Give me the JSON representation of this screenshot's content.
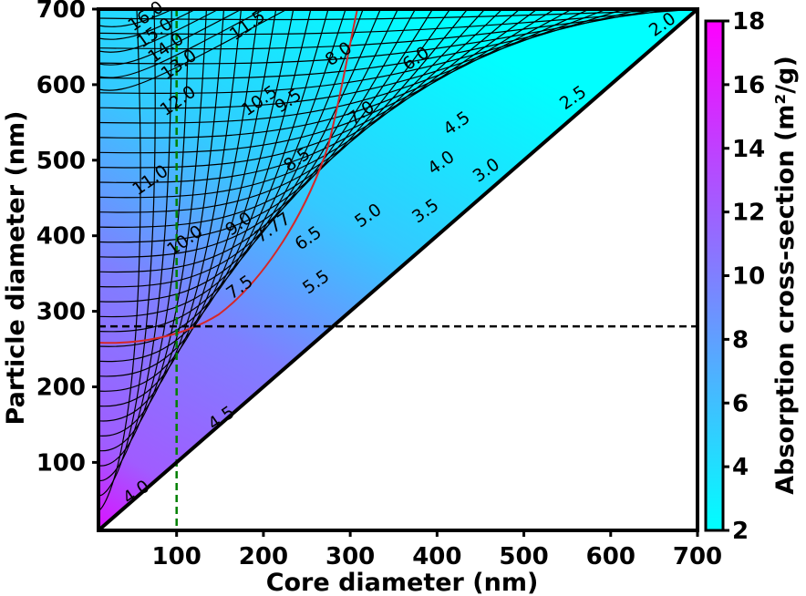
{
  "chart_data": {
    "type": "contour",
    "xlabel": "Core diameter (nm)",
    "ylabel": "Particle diameter (nm)",
    "colorbar_label": "Absorption cross-section (m²/g)",
    "xlim": [
      10,
      700
    ],
    "ylim": [
      10,
      700
    ],
    "x_ticks": [
      "100",
      "200",
      "300",
      "400",
      "500",
      "600",
      "700"
    ],
    "y_ticks": [
      "100",
      "200",
      "300",
      "400",
      "500",
      "600",
      "700"
    ],
    "colorbar_range": [
      2,
      18
    ],
    "colorbar_ticks": [
      "2",
      "4",
      "6",
      "8",
      "10",
      "12",
      "14",
      "16",
      "18"
    ],
    "colormap": [
      "#00ffff",
      "#ff00ff"
    ],
    "reference_lines": [
      {
        "orientation": "vertical",
        "x": 100,
        "color": "#008000",
        "style": "dashed"
      },
      {
        "orientation": "horizontal",
        "y": 280,
        "color": "#000000",
        "style": "dashed"
      }
    ],
    "highlight_contour": {
      "level": 7.77,
      "label": "7.77",
      "color": "#d62728"
    },
    "contour_labels": [
      {
        "text": "16.0",
        "x": 65,
        "y": 690
      },
      {
        "text": "15.0",
        "x": 75,
        "y": 668
      },
      {
        "text": "14.0",
        "x": 88,
        "y": 648
      },
      {
        "text": "13.0",
        "x": 103,
        "y": 626
      },
      {
        "text": "12.0",
        "x": 102,
        "y": 578
      },
      {
        "text": "11.5",
        "x": 182,
        "y": 678
      },
      {
        "text": "11.0",
        "x": 70,
        "y": 473
      },
      {
        "text": "10.5",
        "x": 196,
        "y": 578
      },
      {
        "text": "10.0",
        "x": 110,
        "y": 393
      },
      {
        "text": "9.5",
        "x": 229,
        "y": 578
      },
      {
        "text": "9.0",
        "x": 172,
        "y": 415
      },
      {
        "text": "8.5",
        "x": 239,
        "y": 500
      },
      {
        "text": "8.0",
        "x": 287,
        "y": 640
      },
      {
        "text": "7.77",
        "x": 211,
        "y": 410
      },
      {
        "text": "7.5",
        "x": 173,
        "y": 331
      },
      {
        "text": "7.0",
        "x": 313,
        "y": 562
      },
      {
        "text": "6.5",
        "x": 252,
        "y": 396
      },
      {
        "text": "6.0",
        "x": 376,
        "y": 634
      },
      {
        "text": "5.5",
        "x": 261,
        "y": 338
      },
      {
        "text": "5.0",
        "x": 321,
        "y": 426
      },
      {
        "text": "4.5",
        "x": 423,
        "y": 548
      },
      {
        "text": "4.0",
        "x": 405,
        "y": 496
      },
      {
        "text": "3.5",
        "x": 387,
        "y": 432
      },
      {
        "text": "3.0",
        "x": 457,
        "y": 486
      },
      {
        "text": "2.5",
        "x": 557,
        "y": 582
      },
      {
        "text": "2.0",
        "x": 660,
        "y": 679
      },
      {
        "text": "4.5",
        "x": 152,
        "y": 158
      },
      {
        "text": "4.0",
        "x": 54,
        "y": 60
      }
    ]
  }
}
